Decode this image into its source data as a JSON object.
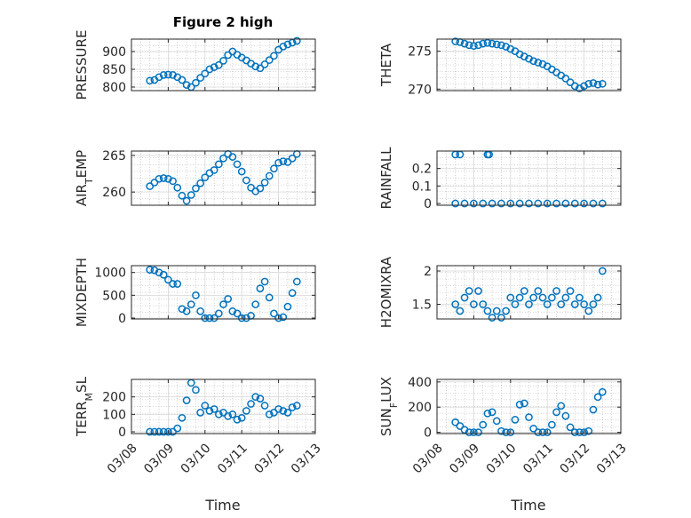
{
  "title": "Figure 2 high",
  "xlabel": "Time",
  "x_tick_labels": [
    "03/08",
    "03/09",
    "03/10",
    "03/11",
    "03/12",
    "03/13"
  ],
  "colors": {
    "marker": "#0072BD",
    "axes": "#262626",
    "grid": "#b0b0b0",
    "background": "#ffffff"
  },
  "chart_data": [
    {
      "type": "scatter",
      "ylabel": "PRESSURE",
      "ylim": [
        790,
        935
      ],
      "yticks": [
        800,
        850,
        900
      ],
      "xlim": [
        "03/08 00:00",
        "03/13 00:00"
      ],
      "grid": true,
      "marker": "circle",
      "points": [
        [
          "03/08 12:00",
          818
        ],
        [
          "03/08 15:00",
          820
        ],
        [
          "03/08 18:00",
          828
        ],
        [
          "03/08 21:00",
          834
        ],
        [
          "03/09 00:00",
          835
        ],
        [
          "03/09 03:00",
          834
        ],
        [
          "03/09 06:00",
          828
        ],
        [
          "03/09 09:00",
          820
        ],
        [
          "03/09 12:00",
          806
        ],
        [
          "03/09 15:00",
          800
        ],
        [
          "03/09 18:00",
          812
        ],
        [
          "03/09 21:00",
          826
        ],
        [
          "03/10 00:00",
          838
        ],
        [
          "03/10 03:00",
          850
        ],
        [
          "03/10 06:00",
          856
        ],
        [
          "03/10 09:00",
          862
        ],
        [
          "03/10 12:00",
          874
        ],
        [
          "03/10 15:00",
          890
        ],
        [
          "03/10 18:00",
          900
        ],
        [
          "03/10 21:00",
          891
        ],
        [
          "03/11 00:00",
          883
        ],
        [
          "03/11 03:00",
          875
        ],
        [
          "03/11 06:00",
          866
        ],
        [
          "03/11 09:00",
          858
        ],
        [
          "03/11 12:00",
          853
        ],
        [
          "03/11 15:00",
          864
        ],
        [
          "03/11 18:00",
          876
        ],
        [
          "03/11 21:00",
          888
        ],
        [
          "03/12 00:00",
          905
        ],
        [
          "03/12 03:00",
          914
        ],
        [
          "03/12 06:00",
          920
        ],
        [
          "03/12 09:00",
          925
        ],
        [
          "03/12 12:00",
          930
        ]
      ]
    },
    {
      "type": "scatter",
      "ylabel": "THETA",
      "ylim": [
        269.8,
        276.6
      ],
      "yticks": [
        270,
        275
      ],
      "xlim": [
        "03/08 00:00",
        "03/13 00:00"
      ],
      "grid": true,
      "marker": "circle",
      "points": [
        [
          "03/08 12:00",
          276.3
        ],
        [
          "03/08 15:00",
          276.2
        ],
        [
          "03/08 18:00",
          276.0
        ],
        [
          "03/08 21:00",
          275.8
        ],
        [
          "03/09 00:00",
          275.7
        ],
        [
          "03/09 03:00",
          275.8
        ],
        [
          "03/09 06:00",
          276.0
        ],
        [
          "03/09 09:00",
          276.1
        ],
        [
          "03/09 12:00",
          276.0
        ],
        [
          "03/09 15:00",
          275.9
        ],
        [
          "03/09 18:00",
          275.8
        ],
        [
          "03/09 21:00",
          275.6
        ],
        [
          "03/10 00:00",
          275.3
        ],
        [
          "03/10 03:00",
          275.0
        ],
        [
          "03/10 06:00",
          274.6
        ],
        [
          "03/10 09:00",
          274.3
        ],
        [
          "03/10 12:00",
          274.0
        ],
        [
          "03/10 15:00",
          273.7
        ],
        [
          "03/10 18:00",
          273.5
        ],
        [
          "03/10 21:00",
          273.3
        ],
        [
          "03/11 00:00",
          273.0
        ],
        [
          "03/11 03:00",
          272.6
        ],
        [
          "03/11 06:00",
          272.2
        ],
        [
          "03/11 09:00",
          271.8
        ],
        [
          "03/11 12:00",
          271.4
        ],
        [
          "03/11 15:00",
          270.9
        ],
        [
          "03/11 18:00",
          270.4
        ],
        [
          "03/11 21:00",
          270.1
        ],
        [
          "03/12 00:00",
          270.4
        ],
        [
          "03/12 03:00",
          270.7
        ],
        [
          "03/12 06:00",
          270.8
        ],
        [
          "03/12 09:00",
          270.6
        ],
        [
          "03/12 12:00",
          270.7
        ]
      ]
    },
    {
      "type": "scatter",
      "ylabel": "AIR_TEMP",
      "ylim": [
        258.2,
        265.6
      ],
      "yticks": [
        260,
        265
      ],
      "xlim": [
        "03/08 00:00",
        "03/13 00:00"
      ],
      "grid": true,
      "marker": "circle",
      "points": [
        [
          "03/08 12:00",
          260.8
        ],
        [
          "03/08 15:00",
          261.3
        ],
        [
          "03/08 18:00",
          261.8
        ],
        [
          "03/08 21:00",
          261.9
        ],
        [
          "03/09 00:00",
          261.8
        ],
        [
          "03/09 03:00",
          261.5
        ],
        [
          "03/09 06:00",
          260.6
        ],
        [
          "03/09 09:00",
          259.5
        ],
        [
          "03/09 12:00",
          258.8
        ],
        [
          "03/09 15:00",
          259.6
        ],
        [
          "03/09 18:00",
          260.5
        ],
        [
          "03/09 21:00",
          261.2
        ],
        [
          "03/10 00:00",
          262.0
        ],
        [
          "03/10 03:00",
          262.6
        ],
        [
          "03/10 06:00",
          263.0
        ],
        [
          "03/10 09:00",
          263.8
        ],
        [
          "03/10 12:00",
          264.6
        ],
        [
          "03/10 15:00",
          265.2
        ],
        [
          "03/10 18:00",
          264.8
        ],
        [
          "03/10 21:00",
          263.8
        ],
        [
          "03/11 00:00",
          262.8
        ],
        [
          "03/11 03:00",
          261.6
        ],
        [
          "03/11 06:00",
          260.6
        ],
        [
          "03/11 09:00",
          260.1
        ],
        [
          "03/11 12:00",
          260.5
        ],
        [
          "03/11 15:00",
          261.3
        ],
        [
          "03/11 18:00",
          262.2
        ],
        [
          "03/11 21:00",
          263.2
        ],
        [
          "03/12 00:00",
          264.0
        ],
        [
          "03/12 03:00",
          264.2
        ],
        [
          "03/12 06:00",
          264.1
        ],
        [
          "03/12 09:00",
          264.6
        ],
        [
          "03/12 12:00",
          265.2
        ]
      ]
    },
    {
      "type": "scatter",
      "ylabel": "RAINFALL",
      "ylim": [
        -0.01,
        0.3
      ],
      "yticks": [
        0,
        0.1,
        0.2
      ],
      "xlim": [
        "03/08 00:00",
        "03/13 00:00"
      ],
      "grid": true,
      "marker": "circle",
      "points": [
        [
          "03/08 12:00",
          0.28
        ],
        [
          "03/08 15:00",
          0.28
        ],
        [
          "03/09 09:00",
          0.28
        ],
        [
          "03/09 10:00",
          0.28
        ],
        [
          "03/08 12:00",
          0
        ],
        [
          "03/08 18:00",
          0
        ],
        [
          "03/09 00:00",
          0
        ],
        [
          "03/09 06:00",
          0
        ],
        [
          "03/09 12:00",
          0
        ],
        [
          "03/09 18:00",
          0
        ],
        [
          "03/10 00:00",
          0
        ],
        [
          "03/10 06:00",
          0
        ],
        [
          "03/10 12:00",
          0
        ],
        [
          "03/10 18:00",
          0
        ],
        [
          "03/11 00:00",
          0
        ],
        [
          "03/11 06:00",
          0
        ],
        [
          "03/11 12:00",
          0
        ],
        [
          "03/11 18:00",
          0
        ],
        [
          "03/12 00:00",
          0
        ],
        [
          "03/12 06:00",
          0
        ],
        [
          "03/12 12:00",
          0
        ]
      ]
    },
    {
      "type": "scatter",
      "ylabel": "MIXDEPTH",
      "ylim": [
        -20,
        1150
      ],
      "yticks": [
        0,
        500,
        1000
      ],
      "xlim": [
        "03/08 00:00",
        "03/13 00:00"
      ],
      "grid": true,
      "marker": "circle",
      "points": [
        [
          "03/08 12:00",
          1060
        ],
        [
          "03/08 15:00",
          1050
        ],
        [
          "03/08 18:00",
          1000
        ],
        [
          "03/08 21:00",
          950
        ],
        [
          "03/09 00:00",
          840
        ],
        [
          "03/09 03:00",
          750
        ],
        [
          "03/09 06:00",
          750
        ],
        [
          "03/09 09:00",
          200
        ],
        [
          "03/09 12:00",
          150
        ],
        [
          "03/09 15:00",
          300
        ],
        [
          "03/09 18:00",
          500
        ],
        [
          "03/09 21:00",
          150
        ],
        [
          "03/10 00:00",
          0
        ],
        [
          "03/10 03:00",
          0
        ],
        [
          "03/10 06:00",
          0
        ],
        [
          "03/10 09:00",
          100
        ],
        [
          "03/10 12:00",
          300
        ],
        [
          "03/10 15:00",
          420
        ],
        [
          "03/10 18:00",
          150
        ],
        [
          "03/10 21:00",
          100
        ],
        [
          "03/11 00:00",
          0
        ],
        [
          "03/11 03:00",
          0
        ],
        [
          "03/11 06:00",
          50
        ],
        [
          "03/11 09:00",
          300
        ],
        [
          "03/11 12:00",
          650
        ],
        [
          "03/11 15:00",
          800
        ],
        [
          "03/11 18:00",
          450
        ],
        [
          "03/11 21:00",
          100
        ],
        [
          "03/12 00:00",
          0
        ],
        [
          "03/12 03:00",
          20
        ],
        [
          "03/12 06:00",
          250
        ],
        [
          "03/12 09:00",
          550
        ],
        [
          "03/12 12:00",
          800
        ]
      ]
    },
    {
      "type": "scatter",
      "ylabel": "H2OMIXRA",
      "ylim": [
        1.28,
        2.08
      ],
      "yticks": [
        1.5,
        2
      ],
      "xlim": [
        "03/08 00:00",
        "03/13 00:00"
      ],
      "grid": true,
      "marker": "circle",
      "points": [
        [
          "03/08 12:00",
          1.5
        ],
        [
          "03/08 15:00",
          1.4
        ],
        [
          "03/08 18:00",
          1.6
        ],
        [
          "03/08 21:00",
          1.7
        ],
        [
          "03/09 00:00",
          1.5
        ],
        [
          "03/09 03:00",
          1.7
        ],
        [
          "03/09 06:00",
          1.5
        ],
        [
          "03/09 09:00",
          1.4
        ],
        [
          "03/09 12:00",
          1.3
        ],
        [
          "03/09 15:00",
          1.4
        ],
        [
          "03/09 18:00",
          1.3
        ],
        [
          "03/09 21:00",
          1.4
        ],
        [
          "03/10 00:00",
          1.6
        ],
        [
          "03/10 03:00",
          1.5
        ],
        [
          "03/10 06:00",
          1.6
        ],
        [
          "03/10 09:00",
          1.7
        ],
        [
          "03/10 12:00",
          1.5
        ],
        [
          "03/10 15:00",
          1.6
        ],
        [
          "03/10 18:00",
          1.7
        ],
        [
          "03/10 21:00",
          1.6
        ],
        [
          "03/11 00:00",
          1.5
        ],
        [
          "03/11 03:00",
          1.6
        ],
        [
          "03/11 06:00",
          1.7
        ],
        [
          "03/11 09:00",
          1.5
        ],
        [
          "03/11 12:00",
          1.6
        ],
        [
          "03/11 15:00",
          1.7
        ],
        [
          "03/11 18:00",
          1.5
        ],
        [
          "03/11 21:00",
          1.6
        ],
        [
          "03/12 00:00",
          1.5
        ],
        [
          "03/12 03:00",
          1.4
        ],
        [
          "03/12 06:00",
          1.5
        ],
        [
          "03/12 09:00",
          1.6
        ],
        [
          "03/12 12:00",
          2.0
        ]
      ]
    },
    {
      "type": "scatter",
      "ylabel": "TERR_MSL",
      "ylim": [
        -10,
        300
      ],
      "yticks": [
        0,
        100,
        200
      ],
      "xlim": [
        "03/08 00:00",
        "03/13 00:00"
      ],
      "grid": true,
      "marker": "circle",
      "points": [
        [
          "03/08 12:00",
          0
        ],
        [
          "03/08 15:00",
          0
        ],
        [
          "03/08 18:00",
          0
        ],
        [
          "03/08 21:00",
          0
        ],
        [
          "03/09 00:00",
          0
        ],
        [
          "03/09 03:00",
          0
        ],
        [
          "03/09 06:00",
          20
        ],
        [
          "03/09 09:00",
          80
        ],
        [
          "03/09 12:00",
          180
        ],
        [
          "03/09 15:00",
          280
        ],
        [
          "03/09 18:00",
          240
        ],
        [
          "03/09 21:00",
          110
        ],
        [
          "03/10 00:00",
          150
        ],
        [
          "03/10 03:00",
          120
        ],
        [
          "03/10 06:00",
          130
        ],
        [
          "03/10 09:00",
          100
        ],
        [
          "03/10 12:00",
          110
        ],
        [
          "03/10 15:00",
          90
        ],
        [
          "03/10 18:00",
          100
        ],
        [
          "03/10 21:00",
          70
        ],
        [
          "03/11 00:00",
          80
        ],
        [
          "03/11 03:00",
          120
        ],
        [
          "03/11 06:00",
          160
        ],
        [
          "03/11 09:00",
          200
        ],
        [
          "03/11 12:00",
          190
        ],
        [
          "03/11 15:00",
          150
        ],
        [
          "03/11 18:00",
          100
        ],
        [
          "03/11 21:00",
          110
        ],
        [
          "03/12 00:00",
          130
        ],
        [
          "03/12 03:00",
          120
        ],
        [
          "03/12 06:00",
          110
        ],
        [
          "03/12 09:00",
          140
        ],
        [
          "03/12 12:00",
          150
        ]
      ]
    },
    {
      "type": "scatter",
      "ylabel": "SUN_FLUX",
      "ylim": [
        -10,
        420
      ],
      "yticks": [
        0,
        200,
        400
      ],
      "xlim": [
        "03/08 00:00",
        "03/13 00:00"
      ],
      "grid": true,
      "marker": "circle",
      "points": [
        [
          "03/08 12:00",
          80
        ],
        [
          "03/08 15:00",
          50
        ],
        [
          "03/08 18:00",
          20
        ],
        [
          "03/08 21:00",
          0
        ],
        [
          "03/09 00:00",
          0
        ],
        [
          "03/09 03:00",
          0
        ],
        [
          "03/09 06:00",
          60
        ],
        [
          "03/09 09:00",
          150
        ],
        [
          "03/09 12:00",
          160
        ],
        [
          "03/09 15:00",
          90
        ],
        [
          "03/09 18:00",
          10
        ],
        [
          "03/09 21:00",
          0
        ],
        [
          "03/10 00:00",
          0
        ],
        [
          "03/10 03:00",
          100
        ],
        [
          "03/10 06:00",
          220
        ],
        [
          "03/10 09:00",
          230
        ],
        [
          "03/10 12:00",
          120
        ],
        [
          "03/10 15:00",
          30
        ],
        [
          "03/10 18:00",
          0
        ],
        [
          "03/10 21:00",
          0
        ],
        [
          "03/11 00:00",
          0
        ],
        [
          "03/11 03:00",
          60
        ],
        [
          "03/11 06:00",
          160
        ],
        [
          "03/11 09:00",
          210
        ],
        [
          "03/11 12:00",
          130
        ],
        [
          "03/11 15:00",
          40
        ],
        [
          "03/11 18:00",
          0
        ],
        [
          "03/11 21:00",
          0
        ],
        [
          "03/12 00:00",
          0
        ],
        [
          "03/12 03:00",
          10
        ],
        [
          "03/12 06:00",
          180
        ],
        [
          "03/12 09:00",
          280
        ],
        [
          "03/12 12:00",
          320
        ]
      ]
    }
  ]
}
